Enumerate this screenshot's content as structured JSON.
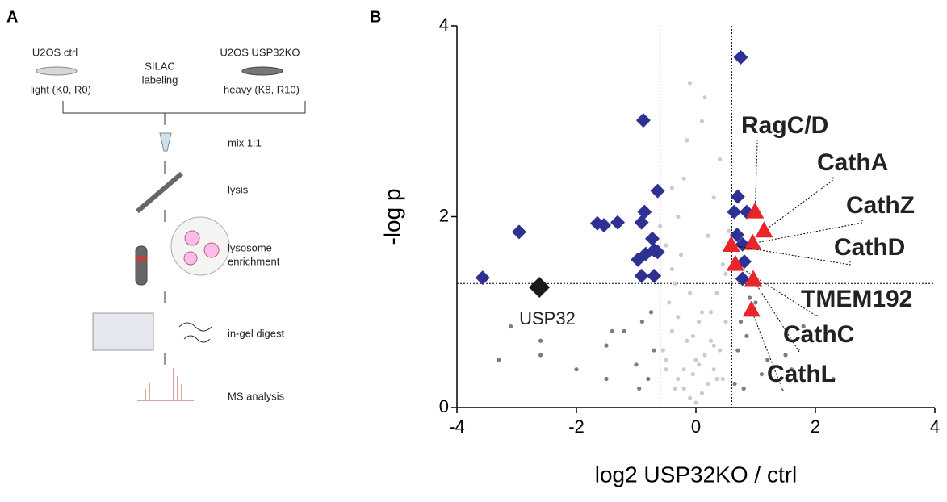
{
  "panel_a": {
    "label": "A",
    "left_sample": "U2OS ctrl",
    "left_condition": "light (K0, R0)",
    "middle_step": [
      "SILAC",
      "labeling"
    ],
    "right_sample": "U2OS USP32KO",
    "right_condition": "heavy (K8, R10)",
    "steps": [
      "mix 1:1",
      "lysis",
      [
        "lysosome",
        "enrichment"
      ],
      "in-gel digest",
      "MS analysis"
    ]
  },
  "chart_data": {
    "type": "scatter",
    "panel_label": "B",
    "x_label": "log2 USP32KO / ctrl",
    "y_label": "-log p",
    "xlim": [
      -4,
      4
    ],
    "ylim": [
      0,
      4
    ],
    "xticks": [
      -4,
      -2,
      0,
      2,
      4
    ],
    "yticks": [
      0,
      2,
      4
    ],
    "thresholds": {
      "x": [
        -0.6,
        0.6
      ],
      "y": 1.3
    },
    "series": [
      {
        "color": "#c8cbcf",
        "marker": "dot",
        "x": [
          -0.5,
          -0.4,
          -0.3,
          -0.2,
          -0.1,
          0,
          0.1,
          0.2,
          0.3,
          0.4,
          0.5,
          -0.45,
          -0.35,
          -0.25,
          -0.15,
          -0.05,
          0.05,
          0.15,
          0.25,
          0.35,
          0.45,
          -0.3,
          -0.2,
          -0.1,
          0.1,
          0.2,
          0.3,
          -0.5,
          0.5,
          -0.4,
          0.4,
          -0.15,
          0.15,
          -0.6,
          0.55,
          -0.55,
          0.05,
          -0.2,
          0.25,
          -0.35,
          0.35,
          -0.1,
          -0.05,
          0,
          0.1,
          -0.3,
          0.3,
          -0.5,
          0.45,
          -0.4
        ],
        "values": [
          0.5,
          0.8,
          0.3,
          0.2,
          0.1,
          0.05,
          0.15,
          0.25,
          0.4,
          0.6,
          0.9,
          1.1,
          1.3,
          1.6,
          0.7,
          0.35,
          0.45,
          0.55,
          1.0,
          1.2,
          1.5,
          2.0,
          2.4,
          3.4,
          3.0,
          1.8,
          2.2,
          1.7,
          1.4,
          2.3,
          2.6,
          2.8,
          3.25,
          1.9,
          1.85,
          0.6,
          0.9,
          0.4,
          0.7,
          0.2,
          0.3,
          1.2,
          0.75,
          0.5,
          1.0,
          0.95,
          0.65,
          0.4,
          0.3,
          1.45
        ]
      },
      {
        "color": "#7a7c80",
        "marker": "dot",
        "x": [
          -3.3,
          -3.1,
          -2.6,
          -2.6,
          -2.0,
          -1.5,
          -1.5,
          -1.2,
          -1.0,
          -0.9,
          -0.8,
          -0.7,
          -1.4,
          0.7,
          0.8,
          0.9,
          1.1,
          1.2,
          1.5,
          1.6,
          1.8,
          2.3,
          0.75,
          0.65,
          1.0,
          -0.75,
          -0.95,
          0.85
        ],
        "values": [
          0.5,
          0.85,
          0.55,
          0.7,
          0.4,
          0.3,
          0.65,
          0.8,
          0.45,
          0.9,
          0.3,
          0.6,
          0.8,
          0.6,
          0.2,
          1.15,
          0.35,
          0.5,
          0.55,
          0.4,
          0.85,
          0.3,
          0.9,
          0.25,
          1.1,
          1.0,
          0.2,
          0.75
        ]
      },
      {
        "color": "#2e3192",
        "marker": "diamond",
        "x": [
          0.75,
          -0.88,
          -0.64,
          -0.86,
          -1.65,
          -1.54,
          -1.31,
          -0.91,
          -0.73,
          -0.7,
          -0.84,
          -0.97,
          -0.64,
          -0.91,
          -0.7,
          -2.96,
          -3.57,
          0.7,
          0.64,
          0.85,
          0.69,
          0.78,
          0.81,
          0.78
        ],
        "values": [
          3.67,
          3.01,
          2.27,
          2.05,
          1.93,
          1.91,
          1.94,
          1.94,
          1.77,
          1.65,
          1.61,
          1.55,
          1.63,
          1.38,
          1.38,
          1.84,
          1.36,
          2.21,
          2.05,
          2.05,
          1.81,
          1.71,
          1.53,
          1.35
        ]
      },
      {
        "color": "#e8262a",
        "marker": "triangle",
        "x": [
          0.99,
          1.14,
          0.95,
          0.59,
          0.66,
          0.96,
          0.93
        ],
        "values": [
          2.05,
          1.85,
          1.72,
          1.7,
          1.5,
          1.34,
          1.02
        ],
        "point_labels": [
          "RagC/D",
          "CathA",
          "CathZ",
          "CathD",
          "TMEM192",
          "CathC",
          "CathL"
        ]
      },
      {
        "color": "#1a1a1a",
        "marker": "bigdiamond",
        "x": [
          -2.62
        ],
        "values": [
          1.26
        ],
        "point_labels": [
          "USP32"
        ]
      }
    ]
  }
}
